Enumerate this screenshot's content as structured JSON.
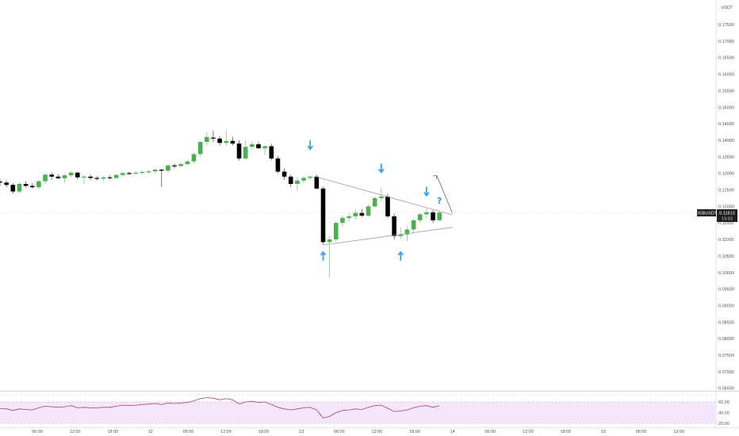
{
  "chart_data": {
    "type": "candlestick",
    "currency": "USDT",
    "symbol_badge": "DGBUSDT",
    "last_price": "0.11813",
    "countdown": "19:03",
    "price_ticks": [
      "0.17500",
      "0.17000",
      "0.16500",
      "0.16000",
      "0.15500",
      "0.15000",
      "0.14500",
      "0.14000",
      "0.13500",
      "0.13000",
      "0.12500",
      "0.12000",
      "0.11500",
      "0.11000",
      "0.10500",
      "0.10000",
      "0.09500",
      "0.09000",
      "0.08500",
      "0.08000",
      "0.07500",
      "0.07000",
      "0.06500"
    ],
    "time_ticks": [
      "06:00",
      "12:00",
      "18:00",
      "12",
      "06:00",
      "12:00",
      "18:00",
      "13",
      "06:00",
      "12:00",
      "18:00",
      "14",
      "06:00",
      "12:00",
      "18:00",
      "15",
      "06:00",
      "12:00"
    ],
    "rsi_ticks": [
      "60.00",
      "40.00",
      "20.00"
    ],
    "colors": {
      "up": "#4caf50",
      "down": "#000000",
      "arrow": "#2196f3",
      "rsi_line": "#a0447f",
      "rsi_band": "#f5e6fb",
      "trendline": "#9e9e9e"
    },
    "candles": [
      {
        "o": 0.1275,
        "h": 0.1282,
        "l": 0.1262,
        "c": 0.1272
      },
      {
        "o": 0.1272,
        "h": 0.1278,
        "l": 0.1258,
        "c": 0.1265
      },
      {
        "o": 0.1265,
        "h": 0.127,
        "l": 0.1238,
        "c": 0.1245
      },
      {
        "o": 0.1245,
        "h": 0.1272,
        "l": 0.124,
        "c": 0.1268
      },
      {
        "o": 0.1268,
        "h": 0.1276,
        "l": 0.1258,
        "c": 0.1262
      },
      {
        "o": 0.1262,
        "h": 0.127,
        "l": 0.1254,
        "c": 0.1258
      },
      {
        "o": 0.1258,
        "h": 0.128,
        "l": 0.1252,
        "c": 0.1276
      },
      {
        "o": 0.1276,
        "h": 0.13,
        "l": 0.1268,
        "c": 0.1296
      },
      {
        "o": 0.1296,
        "h": 0.1302,
        "l": 0.128,
        "c": 0.129
      },
      {
        "o": 0.129,
        "h": 0.1297,
        "l": 0.1282,
        "c": 0.1285
      },
      {
        "o": 0.1285,
        "h": 0.1298,
        "l": 0.1272,
        "c": 0.1294
      },
      {
        "o": 0.1294,
        "h": 0.1305,
        "l": 0.1288,
        "c": 0.1302
      },
      {
        "o": 0.1302,
        "h": 0.1305,
        "l": 0.1282,
        "c": 0.1288
      },
      {
        "o": 0.1288,
        "h": 0.1296,
        "l": 0.1268,
        "c": 0.129
      },
      {
        "o": 0.129,
        "h": 0.1296,
        "l": 0.128,
        "c": 0.1286
      },
      {
        "o": 0.1286,
        "h": 0.1292,
        "l": 0.1278,
        "c": 0.1284
      },
      {
        "o": 0.1284,
        "h": 0.1292,
        "l": 0.1276,
        "c": 0.1288
      },
      {
        "o": 0.1288,
        "h": 0.1294,
        "l": 0.1282,
        "c": 0.1286
      },
      {
        "o": 0.1286,
        "h": 0.1298,
        "l": 0.1282,
        "c": 0.1295
      },
      {
        "o": 0.1295,
        "h": 0.1303,
        "l": 0.129,
        "c": 0.1301
      },
      {
        "o": 0.1301,
        "h": 0.1305,
        "l": 0.1295,
        "c": 0.1299
      },
      {
        "o": 0.1299,
        "h": 0.1305,
        "l": 0.1294,
        "c": 0.1302
      },
      {
        "o": 0.1302,
        "h": 0.1308,
        "l": 0.1297,
        "c": 0.1304
      },
      {
        "o": 0.1304,
        "h": 0.131,
        "l": 0.1298,
        "c": 0.1306
      },
      {
        "o": 0.1306,
        "h": 0.1315,
        "l": 0.13,
        "c": 0.1311
      },
      {
        "o": 0.1311,
        "h": 0.1314,
        "l": 0.1258,
        "c": 0.1308
      },
      {
        "o": 0.1308,
        "h": 0.1328,
        "l": 0.1302,
        "c": 0.1324
      },
      {
        "o": 0.1324,
        "h": 0.133,
        "l": 0.1316,
        "c": 0.1322
      },
      {
        "o": 0.1322,
        "h": 0.1332,
        "l": 0.1318,
        "c": 0.1328
      },
      {
        "o": 0.1328,
        "h": 0.134,
        "l": 0.1323,
        "c": 0.1336
      },
      {
        "o": 0.1336,
        "h": 0.1362,
        "l": 0.133,
        "c": 0.1358
      },
      {
        "o": 0.1358,
        "h": 0.1398,
        "l": 0.135,
        "c": 0.1395
      },
      {
        "o": 0.1395,
        "h": 0.1425,
        "l": 0.1385,
        "c": 0.141
      },
      {
        "o": 0.1408,
        "h": 0.143,
        "l": 0.1395,
        "c": 0.1405
      },
      {
        "o": 0.1405,
        "h": 0.1412,
        "l": 0.1385,
        "c": 0.1392
      },
      {
        "o": 0.1392,
        "h": 0.143,
        "l": 0.1382,
        "c": 0.1398
      },
      {
        "o": 0.1398,
        "h": 0.141,
        "l": 0.1385,
        "c": 0.139
      },
      {
        "o": 0.139,
        "h": 0.14,
        "l": 0.1338,
        "c": 0.1345
      },
      {
        "o": 0.1345,
        "h": 0.14,
        "l": 0.134,
        "c": 0.138
      },
      {
        "o": 0.138,
        "h": 0.1395,
        "l": 0.137,
        "c": 0.1388
      },
      {
        "o": 0.1388,
        "h": 0.1396,
        "l": 0.1373,
        "c": 0.1376
      },
      {
        "o": 0.1376,
        "h": 0.1385,
        "l": 0.1355,
        "c": 0.1382
      },
      {
        "o": 0.1382,
        "h": 0.139,
        "l": 0.134,
        "c": 0.1345
      },
      {
        "o": 0.1345,
        "h": 0.1352,
        "l": 0.13,
        "c": 0.1305
      },
      {
        "o": 0.1305,
        "h": 0.1315,
        "l": 0.128,
        "c": 0.129
      },
      {
        "o": 0.129,
        "h": 0.1296,
        "l": 0.1258,
        "c": 0.1268
      },
      {
        "o": 0.1268,
        "h": 0.129,
        "l": 0.1246,
        "c": 0.1278
      },
      {
        "o": 0.1278,
        "h": 0.1292,
        "l": 0.127,
        "c": 0.1286
      },
      {
        "o": 0.1286,
        "h": 0.1294,
        "l": 0.128,
        "c": 0.129
      },
      {
        "o": 0.129,
        "h": 0.1296,
        "l": 0.1252,
        "c": 0.1254
      },
      {
        "o": 0.1254,
        "h": 0.126,
        "l": 0.1085,
        "c": 0.1092
      },
      {
        "o": 0.1092,
        "h": 0.111,
        "l": 0.0985,
        "c": 0.11
      },
      {
        "o": 0.11,
        "h": 0.1155,
        "l": 0.1092,
        "c": 0.115
      },
      {
        "o": 0.115,
        "h": 0.1172,
        "l": 0.114,
        "c": 0.1165
      },
      {
        "o": 0.1165,
        "h": 0.118,
        "l": 0.1155,
        "c": 0.117
      },
      {
        "o": 0.117,
        "h": 0.119,
        "l": 0.116,
        "c": 0.118
      },
      {
        "o": 0.118,
        "h": 0.1192,
        "l": 0.1168,
        "c": 0.1172
      },
      {
        "o": 0.1172,
        "h": 0.1205,
        "l": 0.1168,
        "c": 0.12
      },
      {
        "o": 0.12,
        "h": 0.123,
        "l": 0.1195,
        "c": 0.1225
      },
      {
        "o": 0.1225,
        "h": 0.1258,
        "l": 0.1215,
        "c": 0.123
      },
      {
        "o": 0.123,
        "h": 0.1238,
        "l": 0.1165,
        "c": 0.117
      },
      {
        "o": 0.117,
        "h": 0.1178,
        "l": 0.11,
        "c": 0.111
      },
      {
        "o": 0.111,
        "h": 0.1138,
        "l": 0.1102,
        "c": 0.1115
      },
      {
        "o": 0.1115,
        "h": 0.114,
        "l": 0.1095,
        "c": 0.113
      },
      {
        "o": 0.113,
        "h": 0.1162,
        "l": 0.1118,
        "c": 0.1158
      },
      {
        "o": 0.1158,
        "h": 0.118,
        "l": 0.115,
        "c": 0.1176
      },
      {
        "o": 0.1176,
        "h": 0.1194,
        "l": 0.1165,
        "c": 0.1182
      },
      {
        "o": 0.1182,
        "h": 0.1188,
        "l": 0.115,
        "c": 0.1158
      },
      {
        "o": 0.1158,
        "h": 0.1184,
        "l": 0.1155,
        "c": 0.1181
      }
    ],
    "rsi": [
      48,
      47,
      44,
      47,
      46,
      45,
      49,
      52,
      51,
      50,
      51,
      53,
      49,
      50,
      49,
      49,
      50,
      50,
      52,
      54,
      53,
      54,
      55,
      56,
      57,
      55,
      58,
      57,
      58,
      59,
      62,
      66,
      68,
      67,
      64,
      66,
      64,
      56,
      60,
      61,
      59,
      60,
      55,
      50,
      47,
      45,
      47,
      49,
      50,
      45,
      30,
      33,
      40,
      44,
      45,
      47,
      46,
      50,
      53,
      54,
      48,
      42,
      43,
      45,
      49,
      52,
      53,
      50,
      53
    ],
    "trendlines": {
      "upper": {
        "from": {
          "i": 49,
          "p": 0.1289
        },
        "to": {
          "i": 73,
          "p": 0.1167
        }
      },
      "lower": {
        "from": {
          "i": 50,
          "p": 0.1083
        },
        "to": {
          "i": 73,
          "p": 0.1132
        }
      }
    },
    "projection_arrow": {
      "from": {
        "i": 69,
        "p": 0.119
      },
      "to": {
        "i": 73,
        "p": 0.1298
      }
    },
    "markers": [
      {
        "type": "arrow-down",
        "i": 48,
        "p": 0.1385
      },
      {
        "type": "arrow-down",
        "i": 59,
        "p": 0.1315
      },
      {
        "type": "arrow-down",
        "i": 66,
        "p": 0.1245
      },
      {
        "type": "arrow-up",
        "i": 50,
        "p": 0.105
      },
      {
        "type": "arrow-up",
        "i": 62,
        "p": 0.105
      },
      {
        "type": "question",
        "label": "?",
        "i": 68,
        "p": 0.1218
      }
    ]
  }
}
